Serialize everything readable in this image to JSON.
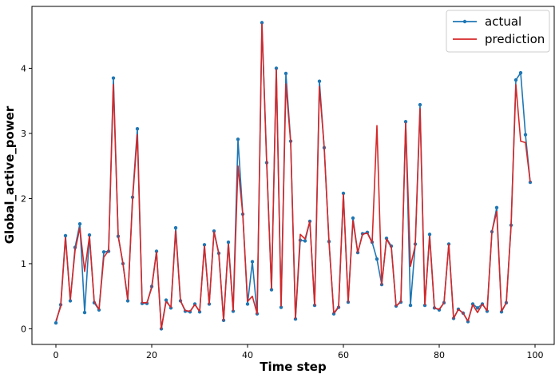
{
  "chart_data": {
    "type": "line",
    "xlabel": "Time step",
    "ylabel": "Global_active_power",
    "xlim": [
      -5,
      104
    ],
    "ylim": [
      -0.24,
      4.95
    ],
    "xticks": [
      0,
      20,
      40,
      60,
      80,
      100
    ],
    "yticks": [
      0,
      1,
      2,
      3,
      4
    ],
    "legend_position": "top-right",
    "grid": false,
    "series": [
      {
        "name": "actual",
        "color": "#1f77b4",
        "marker": "dot",
        "values": [
          0.09,
          0.37,
          1.43,
          0.43,
          1.25,
          1.61,
          0.25,
          1.44,
          0.4,
          0.29,
          1.18,
          1.19,
          3.85,
          1.42,
          1.0,
          0.43,
          2.02,
          3.07,
          0.39,
          0.39,
          0.65,
          1.19,
          0.0,
          0.44,
          0.32,
          1.55,
          0.43,
          0.27,
          0.26,
          0.38,
          0.26,
          1.29,
          0.38,
          1.5,
          1.16,
          0.13,
          1.33,
          0.27,
          2.91,
          1.76,
          0.38,
          1.03,
          0.23,
          4.7,
          2.55,
          0.6,
          4.0,
          0.33,
          3.92,
          2.88,
          0.15,
          1.36,
          1.35,
          1.65,
          0.36,
          3.8,
          2.78,
          1.34,
          0.23,
          0.33,
          2.08,
          0.41,
          1.7,
          1.17,
          1.46,
          1.48,
          1.33,
          1.07,
          0.68,
          1.39,
          1.27,
          0.35,
          0.41,
          3.18,
          0.36,
          1.3,
          3.44,
          0.36,
          1.45,
          0.32,
          0.29,
          0.4,
          1.3,
          0.16,
          0.3,
          0.24,
          0.11,
          0.38,
          0.32,
          0.38,
          0.27,
          1.49,
          1.86,
          0.26,
          0.4,
          1.59,
          3.82,
          3.93,
          2.98,
          2.25
        ]
      },
      {
        "name": "prediction",
        "color": "#d62728",
        "marker": "none",
        "values": [
          0.12,
          0.34,
          1.4,
          0.45,
          1.2,
          1.55,
          0.88,
          1.42,
          0.42,
          0.3,
          1.1,
          1.2,
          3.75,
          1.43,
          1.0,
          0.45,
          1.98,
          2.98,
          0.4,
          0.4,
          0.63,
          1.18,
          0.0,
          0.42,
          0.33,
          1.5,
          0.43,
          0.28,
          0.27,
          0.37,
          0.27,
          1.27,
          0.38,
          1.49,
          1.15,
          0.13,
          1.3,
          0.28,
          2.5,
          1.76,
          0.42,
          0.5,
          0.23,
          4.68,
          2.52,
          0.62,
          3.98,
          0.35,
          3.76,
          2.86,
          0.16,
          1.45,
          1.38,
          1.65,
          0.36,
          3.72,
          2.78,
          1.33,
          0.24,
          0.34,
          2.06,
          0.41,
          1.66,
          1.17,
          1.45,
          1.47,
          1.32,
          3.12,
          0.68,
          1.38,
          1.25,
          0.35,
          0.42,
          3.16,
          0.96,
          1.28,
          3.38,
          0.37,
          1.42,
          0.32,
          0.3,
          0.4,
          1.3,
          0.16,
          0.3,
          0.24,
          0.12,
          0.37,
          0.25,
          0.38,
          0.28,
          1.49,
          1.8,
          0.27,
          0.4,
          1.58,
          3.75,
          2.88,
          2.86,
          2.25
        ]
      }
    ]
  }
}
